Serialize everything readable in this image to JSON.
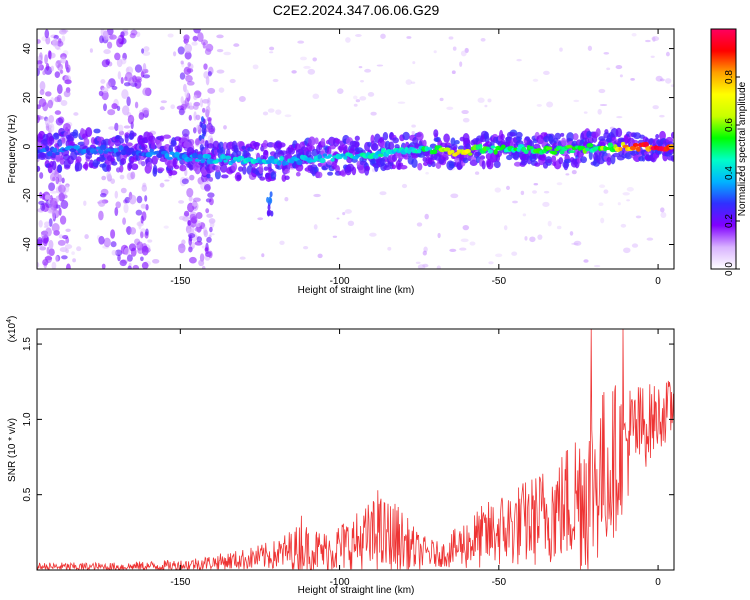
{
  "figure": {
    "title": "C2E2.2024.347.06.06.G29"
  },
  "chart_data": [
    {
      "type": "heatmap",
      "id": "spectrogram",
      "xlabel": "Height of straight line (km)",
      "ylabel": "Frequency (Hz)",
      "xlim": [
        -195,
        5
      ],
      "ylim": [
        -50,
        48
      ],
      "x_ticks": [
        -150,
        -100,
        -50,
        0
      ],
      "x_tick_labels": [
        "-150",
        "-100",
        "-50",
        "0"
      ],
      "y_ticks": [
        -40,
        -20,
        0,
        20,
        40
      ],
      "y_tick_labels": [
        "-40",
        "-20",
        "0",
        "20",
        "40"
      ],
      "colorbar": {
        "label": "Normalized spectral amplitude",
        "range": [
          0.0,
          1.0
        ],
        "ticks": [
          0.0,
          0.2,
          0.4,
          0.6,
          0.8
        ],
        "tick_labels": [
          "0.0",
          "0.2",
          "0.4",
          "0.6",
          "0.8"
        ],
        "colormap": [
          "#ffffff",
          "#d9b3ff",
          "#8000ff",
          "#3030ff",
          "#00b4ff",
          "#00ffc8",
          "#00ff00",
          "#c8ff00",
          "#ffff00",
          "#ffa000",
          "#ff0000",
          "#ff0060"
        ]
      },
      "ridge": [
        {
          "x": -195,
          "freq": -2,
          "amp": 0.3
        },
        {
          "x": -180,
          "freq": -1,
          "amp": 0.32
        },
        {
          "x": -165,
          "freq": -2,
          "amp": 0.3
        },
        {
          "x": -150,
          "freq": -4,
          "amp": 0.35
        },
        {
          "x": -140,
          "freq": -5,
          "amp": 0.4
        },
        {
          "x": -130,
          "freq": -6,
          "amp": 0.42
        },
        {
          "x": -120,
          "freq": -6,
          "amp": 0.4
        },
        {
          "x": -110,
          "freq": -5,
          "amp": 0.4
        },
        {
          "x": -100,
          "freq": -4,
          "amp": 0.42
        },
        {
          "x": -90,
          "freq": -3,
          "amp": 0.45
        },
        {
          "x": -80,
          "freq": -2,
          "amp": 0.45
        },
        {
          "x": -70,
          "freq": -1,
          "amp": 0.5
        },
        {
          "x": -64,
          "freq": -3,
          "amp": 0.8
        },
        {
          "x": -55,
          "freq": -1,
          "amp": 0.55
        },
        {
          "x": -45,
          "freq": -1,
          "amp": 0.55
        },
        {
          "x": -35,
          "freq": -2,
          "amp": 0.55
        },
        {
          "x": -25,
          "freq": -1,
          "amp": 0.55
        },
        {
          "x": -15,
          "freq": 0,
          "amp": 0.6
        },
        {
          "x": -10,
          "freq": 0,
          "amp": 0.85
        },
        {
          "x": 0,
          "freq": 0,
          "amp": 0.95
        },
        {
          "x": 5,
          "freq": 0,
          "amp": 0.9
        }
      ],
      "features": [
        {
          "x": -122,
          "freq": -24,
          "amp": 0.35,
          "note": "isolated blob below ridge"
        },
        {
          "x": -143,
          "freq": 8,
          "amp": 0.3,
          "note": "vertical streak near -143 km"
        }
      ],
      "noise_bands_x": [
        [
          -195,
          -185
        ],
        [
          -175,
          -160
        ],
        [
          -150,
          -140
        ]
      ]
    },
    {
      "type": "line",
      "id": "snr",
      "xlabel": "Height of straight line (km)",
      "ylabel": "SNR (10 * v/v)",
      "scale_label": "(x10",
      "scale_exponent": "4",
      "scale_suffix": ")",
      "xlim": [
        -195,
        5
      ],
      "ylim": [
        0.0,
        1.6
      ],
      "x_ticks": [
        -150,
        -100,
        -50,
        0
      ],
      "x_tick_labels": [
        "-150",
        "-100",
        "-50",
        "0"
      ],
      "y_ticks": [
        0.5,
        1.0,
        1.5
      ],
      "y_tick_labels": [
        "0.5",
        "1.0",
        "1.5"
      ],
      "series": [
        {
          "name": "SNR",
          "color": "#ee3333",
          "envelope": [
            {
              "x": -195,
              "base": 0.02,
              "spread": 0.03
            },
            {
              "x": -170,
              "base": 0.02,
              "spread": 0.03
            },
            {
              "x": -150,
              "base": 0.03,
              "spread": 0.04
            },
            {
              "x": -140,
              "base": 0.05,
              "spread": 0.05
            },
            {
              "x": -130,
              "base": 0.07,
              "spread": 0.07
            },
            {
              "x": -120,
              "base": 0.1,
              "spread": 0.1
            },
            {
              "x": -112,
              "base": 0.15,
              "spread": 0.17
            },
            {
              "x": -105,
              "base": 0.12,
              "spread": 0.14
            },
            {
              "x": -95,
              "base": 0.18,
              "spread": 0.2
            },
            {
              "x": -88,
              "base": 0.22,
              "spread": 0.28
            },
            {
              "x": -82,
              "base": 0.2,
              "spread": 0.25
            },
            {
              "x": -75,
              "base": 0.12,
              "spread": 0.12
            },
            {
              "x": -68,
              "base": 0.1,
              "spread": 0.08
            },
            {
              "x": -60,
              "base": 0.18,
              "spread": 0.18
            },
            {
              "x": -50,
              "base": 0.26,
              "spread": 0.25
            },
            {
              "x": -40,
              "base": 0.32,
              "spread": 0.3
            },
            {
              "x": -30,
              "base": 0.42,
              "spread": 0.38
            },
            {
              "x": -22,
              "base": 0.55,
              "spread": 0.6
            },
            {
              "x": -15,
              "base": 0.7,
              "spread": 0.55
            },
            {
              "x": -8,
              "base": 0.9,
              "spread": 0.35
            },
            {
              "x": 0,
              "base": 1.02,
              "spread": 0.22
            },
            {
              "x": 5,
              "base": 1.08,
              "spread": 0.2
            }
          ],
          "peaks": [
            {
              "x": -21,
              "y": 1.6
            },
            {
              "x": -11,
              "y": 1.6
            },
            {
              "x": -88,
              "y": 0.53
            },
            {
              "x": -112,
              "y": 0.36
            }
          ]
        }
      ]
    }
  ]
}
